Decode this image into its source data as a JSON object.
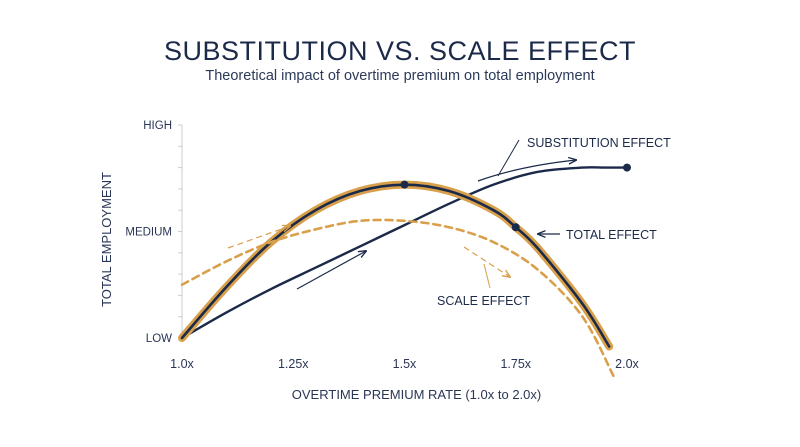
{
  "header": {
    "title": "SUBSTITUTION VS. SCALE EFFECT",
    "subtitle": "Theoretical impact of overtime premium on total employment"
  },
  "colors": {
    "navy": "#1c2a4a",
    "gold": "#d9a04c"
  },
  "chart_data": {
    "type": "line",
    "xlabel": "OVERTIME PREMIUM RATE (1.0x to 2.0x)",
    "ylabel": "TOTAL EMPLOYMENT",
    "xlim": [
      1.0,
      2.0
    ],
    "ylim": [
      0,
      1
    ],
    "x_ticks": [
      1.0,
      1.25,
      1.5,
      1.75,
      2.0
    ],
    "x_tick_labels": [
      "1.0x",
      "1.25x",
      "1.5x",
      "1.75x",
      "2.0x"
    ],
    "y_ticks": [
      0,
      0.5,
      1.0
    ],
    "y_tick_labels": [
      "LOW",
      "MEDIUM",
      "HIGH"
    ],
    "grid": false,
    "series": [
      {
        "name": "SUBSTITUTION EFFECT",
        "style": "solid-navy",
        "x": [
          1.0,
          1.1,
          1.2,
          1.3,
          1.4,
          1.5,
          1.6,
          1.7,
          1.8,
          1.9,
          1.95,
          2.0
        ],
        "y": [
          0.0,
          0.12,
          0.23,
          0.33,
          0.43,
          0.53,
          0.63,
          0.72,
          0.78,
          0.8,
          0.8,
          0.8
        ]
      },
      {
        "name": "TOTAL EFFECT",
        "style": "navy-with-gold-outline",
        "x": [
          1.0,
          1.1,
          1.2,
          1.3,
          1.4,
          1.5,
          1.6,
          1.7,
          1.75,
          1.8,
          1.9,
          1.96
        ],
        "y": [
          0.0,
          0.24,
          0.45,
          0.6,
          0.69,
          0.72,
          0.69,
          0.6,
          0.52,
          0.42,
          0.16,
          -0.04
        ]
      },
      {
        "name": "SCALE EFFECT",
        "style": "dashed-gold",
        "x": [
          1.0,
          1.1,
          1.2,
          1.3,
          1.4,
          1.5,
          1.6,
          1.7,
          1.8,
          1.9,
          1.97
        ],
        "y": [
          0.25,
          0.36,
          0.45,
          0.51,
          0.55,
          0.55,
          0.52,
          0.45,
          0.32,
          0.1,
          -0.18
        ]
      }
    ],
    "markers": [
      {
        "series": "TOTAL EFFECT",
        "x": 1.5,
        "y": 0.72
      },
      {
        "series": "TOTAL EFFECT",
        "x": 1.75,
        "y": 0.52
      },
      {
        "series": "SUBSTITUTION EFFECT",
        "x": 2.0,
        "y": 0.8
      }
    ],
    "annotations": [
      {
        "text": "SUBSTITUTION EFFECT",
        "target": "SUBSTITUTION EFFECT",
        "position": "top-right"
      },
      {
        "text": "TOTAL EFFECT",
        "target": "TOTAL EFFECT",
        "position": "right"
      },
      {
        "text": "SCALE EFFECT",
        "target": "SCALE EFFECT",
        "position": "lower-center"
      }
    ]
  }
}
